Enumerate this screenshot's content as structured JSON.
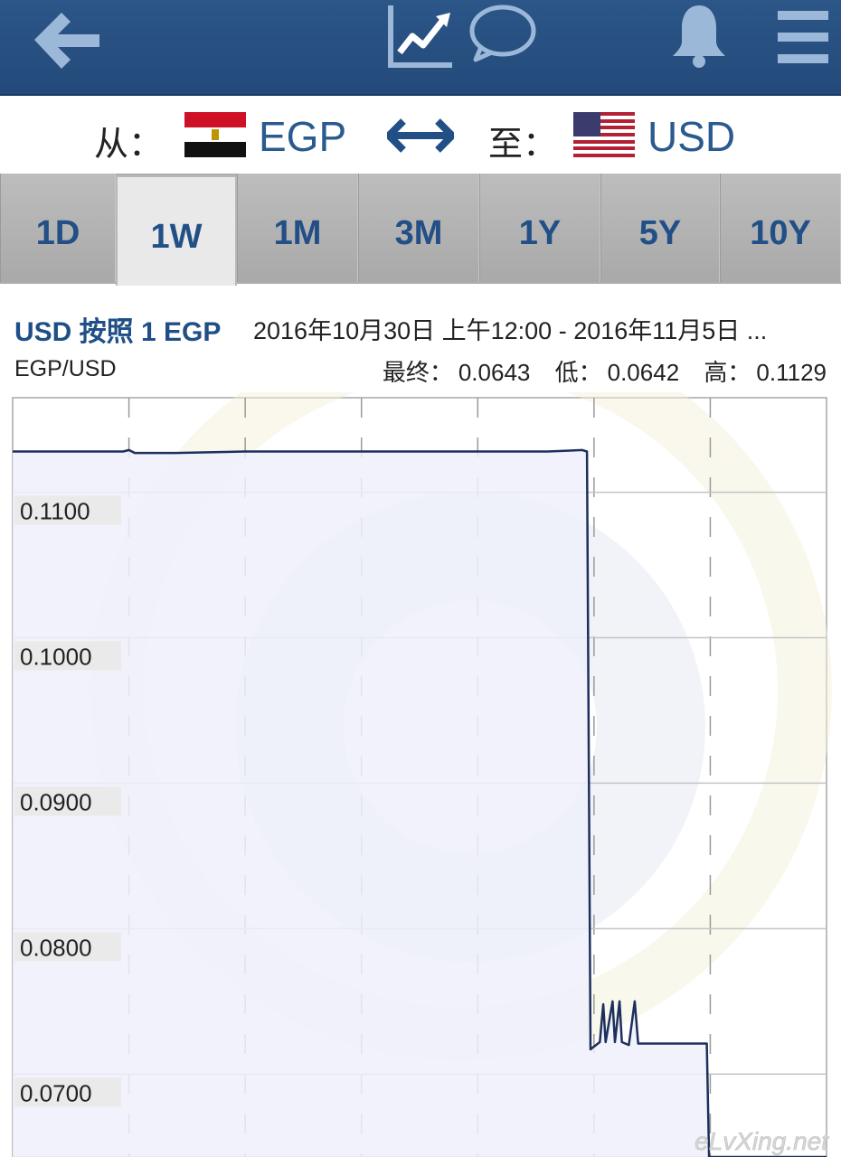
{
  "nav": {
    "back_icon": "arrow-left-icon",
    "chart_icon": "trend-chart-icon",
    "chat_icon": "speech-bubble-icon",
    "bell_icon": "bell-icon",
    "menu_icon": "hamburger-menu-icon"
  },
  "pair": {
    "from_label": "从：",
    "from_code": "EGP",
    "to_label": "至：",
    "to_code": "USD",
    "swap_icon": "double-arrow-icon"
  },
  "tabs": [
    {
      "label": "1D",
      "active": false
    },
    {
      "label": "1W",
      "active": true
    },
    {
      "label": "1M",
      "active": false
    },
    {
      "label": "3M",
      "active": false
    },
    {
      "label": "1Y",
      "active": false
    },
    {
      "label": "5Y",
      "active": false
    },
    {
      "label": "10Y",
      "active": false
    }
  ],
  "header": {
    "title": "USD 按照 1 EGP",
    "date_range": "2016年10月30日 上午12:00 - 2016年11月5日 ...",
    "pair_name": "EGP/USD",
    "final_label": "最终：",
    "final_value": "0.0643",
    "low_label": "低：",
    "low_value": "0.0642",
    "high_label": "高：",
    "high_value": "0.1129"
  },
  "colors": {
    "nav_bg": "#254d7e",
    "accent": "#214f86",
    "line": "#1d2f5c",
    "fill": "#eef0fa"
  },
  "watermark": "eLvXing.net",
  "chart_data": {
    "type": "line",
    "y_ticks": [
      "0.1100",
      "0.1000",
      "0.0900",
      "0.0800",
      "0.0700"
    ],
    "ylim": [
      0.0643,
      0.1165
    ],
    "x_days": 7,
    "grid": true,
    "series": [
      {
        "values": [
          [
            0.0,
            0.1128
          ],
          [
            0.95,
            0.1128
          ],
          [
            1.0,
            0.1129
          ],
          [
            1.05,
            0.1127
          ],
          [
            1.4,
            0.1127
          ],
          [
            2.0,
            0.1128
          ],
          [
            2.7,
            0.1128
          ],
          [
            3.3,
            0.1128
          ],
          [
            4.0,
            0.1128
          ],
          [
            4.6,
            0.1128
          ],
          [
            4.9,
            0.1129
          ],
          [
            4.94,
            0.1128
          ],
          [
            4.97,
            0.0717
          ],
          [
            5.05,
            0.0722
          ],
          [
            5.08,
            0.0748
          ],
          [
            5.1,
            0.0722
          ],
          [
            5.16,
            0.075
          ],
          [
            5.18,
            0.0722
          ],
          [
            5.22,
            0.075
          ],
          [
            5.24,
            0.0722
          ],
          [
            5.3,
            0.072
          ],
          [
            5.35,
            0.075
          ],
          [
            5.38,
            0.0721
          ],
          [
            5.6,
            0.0721
          ],
          [
            5.97,
            0.0721
          ],
          [
            5.99,
            0.0643
          ],
          [
            6.5,
            0.0643
          ],
          [
            7.0,
            0.0643
          ]
        ]
      }
    ]
  }
}
